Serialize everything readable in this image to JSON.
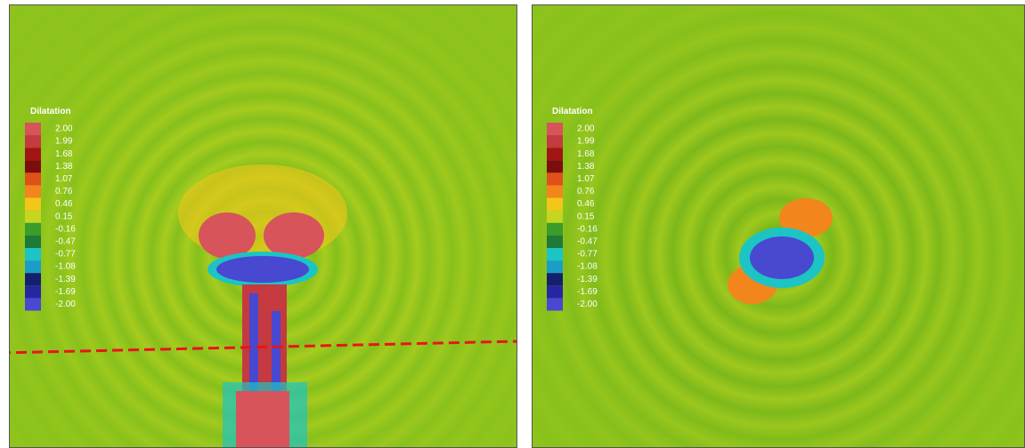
{
  "panels": [
    {
      "legend": {
        "title": "Dilatation",
        "levels": [
          {
            "label": "2.00",
            "color": "#d6545a"
          },
          {
            "label": "1.99",
            "color": "#c43a40"
          },
          {
            "label": "1.68",
            "color": "#a31414"
          },
          {
            "label": "1.38",
            "color": "#7e0c0c"
          },
          {
            "label": "1.07",
            "color": "#e0501a"
          },
          {
            "label": "0.76",
            "color": "#f2861c"
          },
          {
            "label": "0.46",
            "color": "#f4c61a"
          },
          {
            "label": "0.15",
            "color": "#c4d620"
          },
          {
            "label": "-0.16",
            "color": "#3c9c2a"
          },
          {
            "label": "-0.47",
            "color": "#1e7a38"
          },
          {
            "label": "-0.77",
            "color": "#1cc4c4"
          },
          {
            "label": "-1.08",
            "color": "#1a9ec8"
          },
          {
            "label": "-1.39",
            "color": "#14206e"
          },
          {
            "label": "-1.69",
            "color": "#2626a0"
          },
          {
            "label": "-2.00",
            "color": "#4848d0"
          }
        ]
      }
    },
    {
      "legend": {
        "title": "Dilatation",
        "levels": [
          {
            "label": "2.00",
            "color": "#d6545a"
          },
          {
            "label": "1.99",
            "color": "#c43a40"
          },
          {
            "label": "1.68",
            "color": "#a31414"
          },
          {
            "label": "1.38",
            "color": "#7e0c0c"
          },
          {
            "label": "1.07",
            "color": "#e0501a"
          },
          {
            "label": "0.76",
            "color": "#f2861c"
          },
          {
            "label": "0.46",
            "color": "#f4c61a"
          },
          {
            "label": "0.15",
            "color": "#c4d620"
          },
          {
            "label": "-0.16",
            "color": "#3c9c2a"
          },
          {
            "label": "-0.47",
            "color": "#1e7a38"
          },
          {
            "label": "-0.77",
            "color": "#1cc4c4"
          },
          {
            "label": "-1.08",
            "color": "#1a9ec8"
          },
          {
            "label": "-1.39",
            "color": "#14206e"
          },
          {
            "label": "-1.69",
            "color": "#2626a0"
          },
          {
            "label": "-2.00",
            "color": "#4848d0"
          }
        ]
      }
    }
  ]
}
